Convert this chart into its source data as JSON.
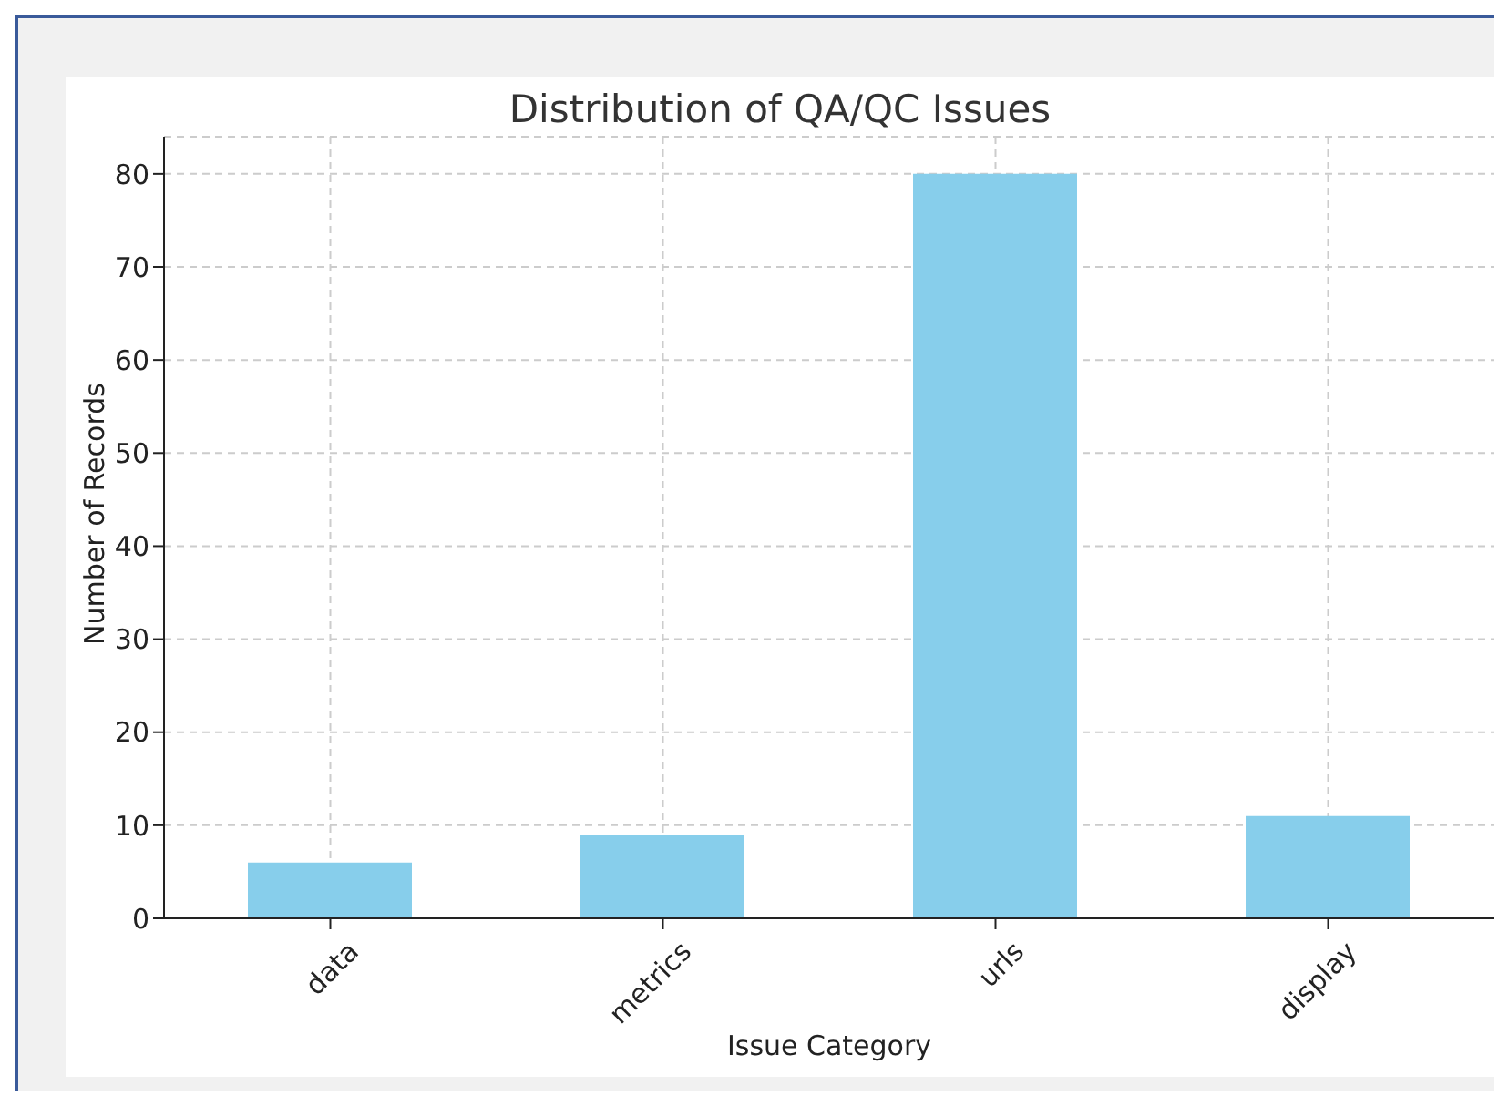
{
  "chart_data": {
    "type": "bar",
    "title": "Distribution of QA/QC Issues",
    "xlabel": "Issue Category",
    "ylabel": "Number of Records",
    "categories": [
      "data",
      "metrics",
      "urls",
      "display"
    ],
    "values": [
      6,
      9,
      80,
      11
    ],
    "color": "#87ceeb",
    "ylim": [
      0,
      84
    ],
    "yticks": [
      0,
      10,
      20,
      30,
      40,
      50,
      60,
      70,
      80
    ],
    "grid": true
  }
}
